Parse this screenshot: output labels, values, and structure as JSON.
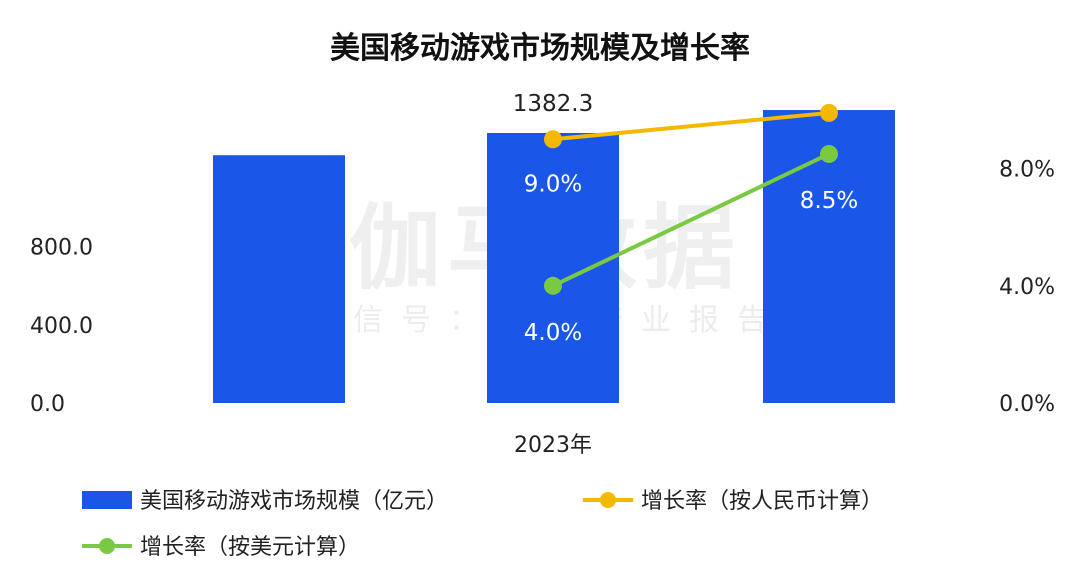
{
  "chart_data": {
    "type": "bar",
    "title": "美国移动游戏市场规模及增长率",
    "categories": [
      "",
      "2023年",
      ""
    ],
    "series": [
      {
        "name": "美国移动游戏市场规模（亿元）",
        "type": "bar",
        "axis": "left",
        "color": "#1a56e8",
        "values": [
          1268.6,
          1382.3,
          1499.8
        ]
      },
      {
        "name": "增长率（按人民币计算）",
        "type": "line",
        "axis": "right",
        "color": "#f5b800",
        "values": [
          null,
          9.0,
          9.9
        ]
      },
      {
        "name": "增长率（按美元计算）",
        "type": "line",
        "axis": "right",
        "color": "#7ac943",
        "values": [
          null,
          4.0,
          8.5
        ]
      }
    ],
    "bar_value_labels": [
      "",
      "1382.3",
      ""
    ],
    "line_value_labels": {
      "cny": [
        "",
        "9.0%",
        ""
      ],
      "usd": [
        "",
        "4.0%",
        "8.5%"
      ]
    },
    "y_left": {
      "ticks": [
        "0.0",
        "400.0",
        "800.0"
      ],
      "ylim": [
        0,
        1500
      ]
    },
    "y_right": {
      "ticks": [
        "0.0%",
        "4.0%",
        "8.0%"
      ],
      "ylim": [
        0,
        10
      ]
    },
    "legend_position": "bottom"
  },
  "watermark": {
    "line1": "伽马数据",
    "line2": "微信号：游戏产业报告"
  }
}
